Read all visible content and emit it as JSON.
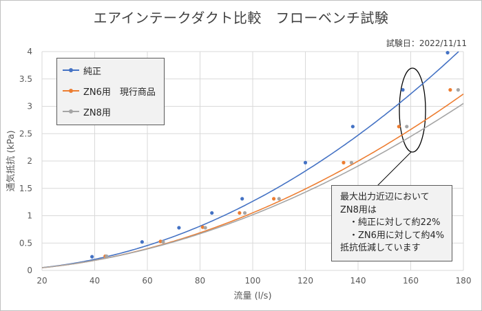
{
  "title": "エアインテークダクト比較　フローベンチ試験",
  "test_date": "試験日：2022/11/11",
  "annotation": {
    "lines": [
      "最大出力近辺において",
      "ZN8用は",
      "　・純正に対して約22%",
      "　・ZN6用に対して約4%",
      "抵抗低減しています"
    ]
  },
  "chart_data": {
    "type": "line",
    "title": "エアインテークダクト比較　フローベンチ試験",
    "xlabel": "流量 (l/s)",
    "ylabel": "通気抵抗 (kPa)",
    "xlim": [
      20,
      180
    ],
    "ylim": [
      0,
      4
    ],
    "xticks": [
      20,
      40,
      60,
      80,
      100,
      120,
      140,
      160,
      180
    ],
    "yticks": [
      0,
      0.5,
      1,
      1.5,
      2,
      2.5,
      3,
      3.5,
      4
    ],
    "ytick_labels": [
      "0",
      "0.5",
      "1",
      "1.5",
      "2",
      "2.5",
      "3",
      "3.5",
      "4"
    ],
    "grid": true,
    "legend_position": "top-left",
    "series": [
      {
        "name": "純正",
        "color": "#4472c4",
        "curve_coef": 0.000128,
        "curve_power": 1.997,
        "x": [
          39,
          58,
          72,
          84.5,
          96,
          120,
          138,
          157,
          174
        ],
        "y": [
          0.25,
          0.52,
          0.78,
          1.05,
          1.31,
          1.97,
          2.63,
          3.3,
          3.98
        ]
      },
      {
        "name": "ZN6用　現行商品",
        "color": "#ed7d31",
        "curve_coef": 0.000163,
        "curve_power": 1.905,
        "x": [
          44,
          65,
          81,
          95,
          108,
          134.5,
          155.5,
          175
        ],
        "y": [
          0.26,
          0.53,
          0.79,
          1.05,
          1.31,
          1.97,
          2.63,
          3.3
        ]
      },
      {
        "name": "ZN8用",
        "color": "#a5a5a5",
        "curve_coef": 0.000186,
        "curve_power": 1.869,
        "x": [
          44.5,
          66,
          82,
          97,
          110,
          137.5,
          158.5,
          178
        ],
        "y": [
          0.26,
          0.52,
          0.78,
          1.05,
          1.31,
          1.97,
          2.63,
          3.3
        ]
      }
    ]
  }
}
